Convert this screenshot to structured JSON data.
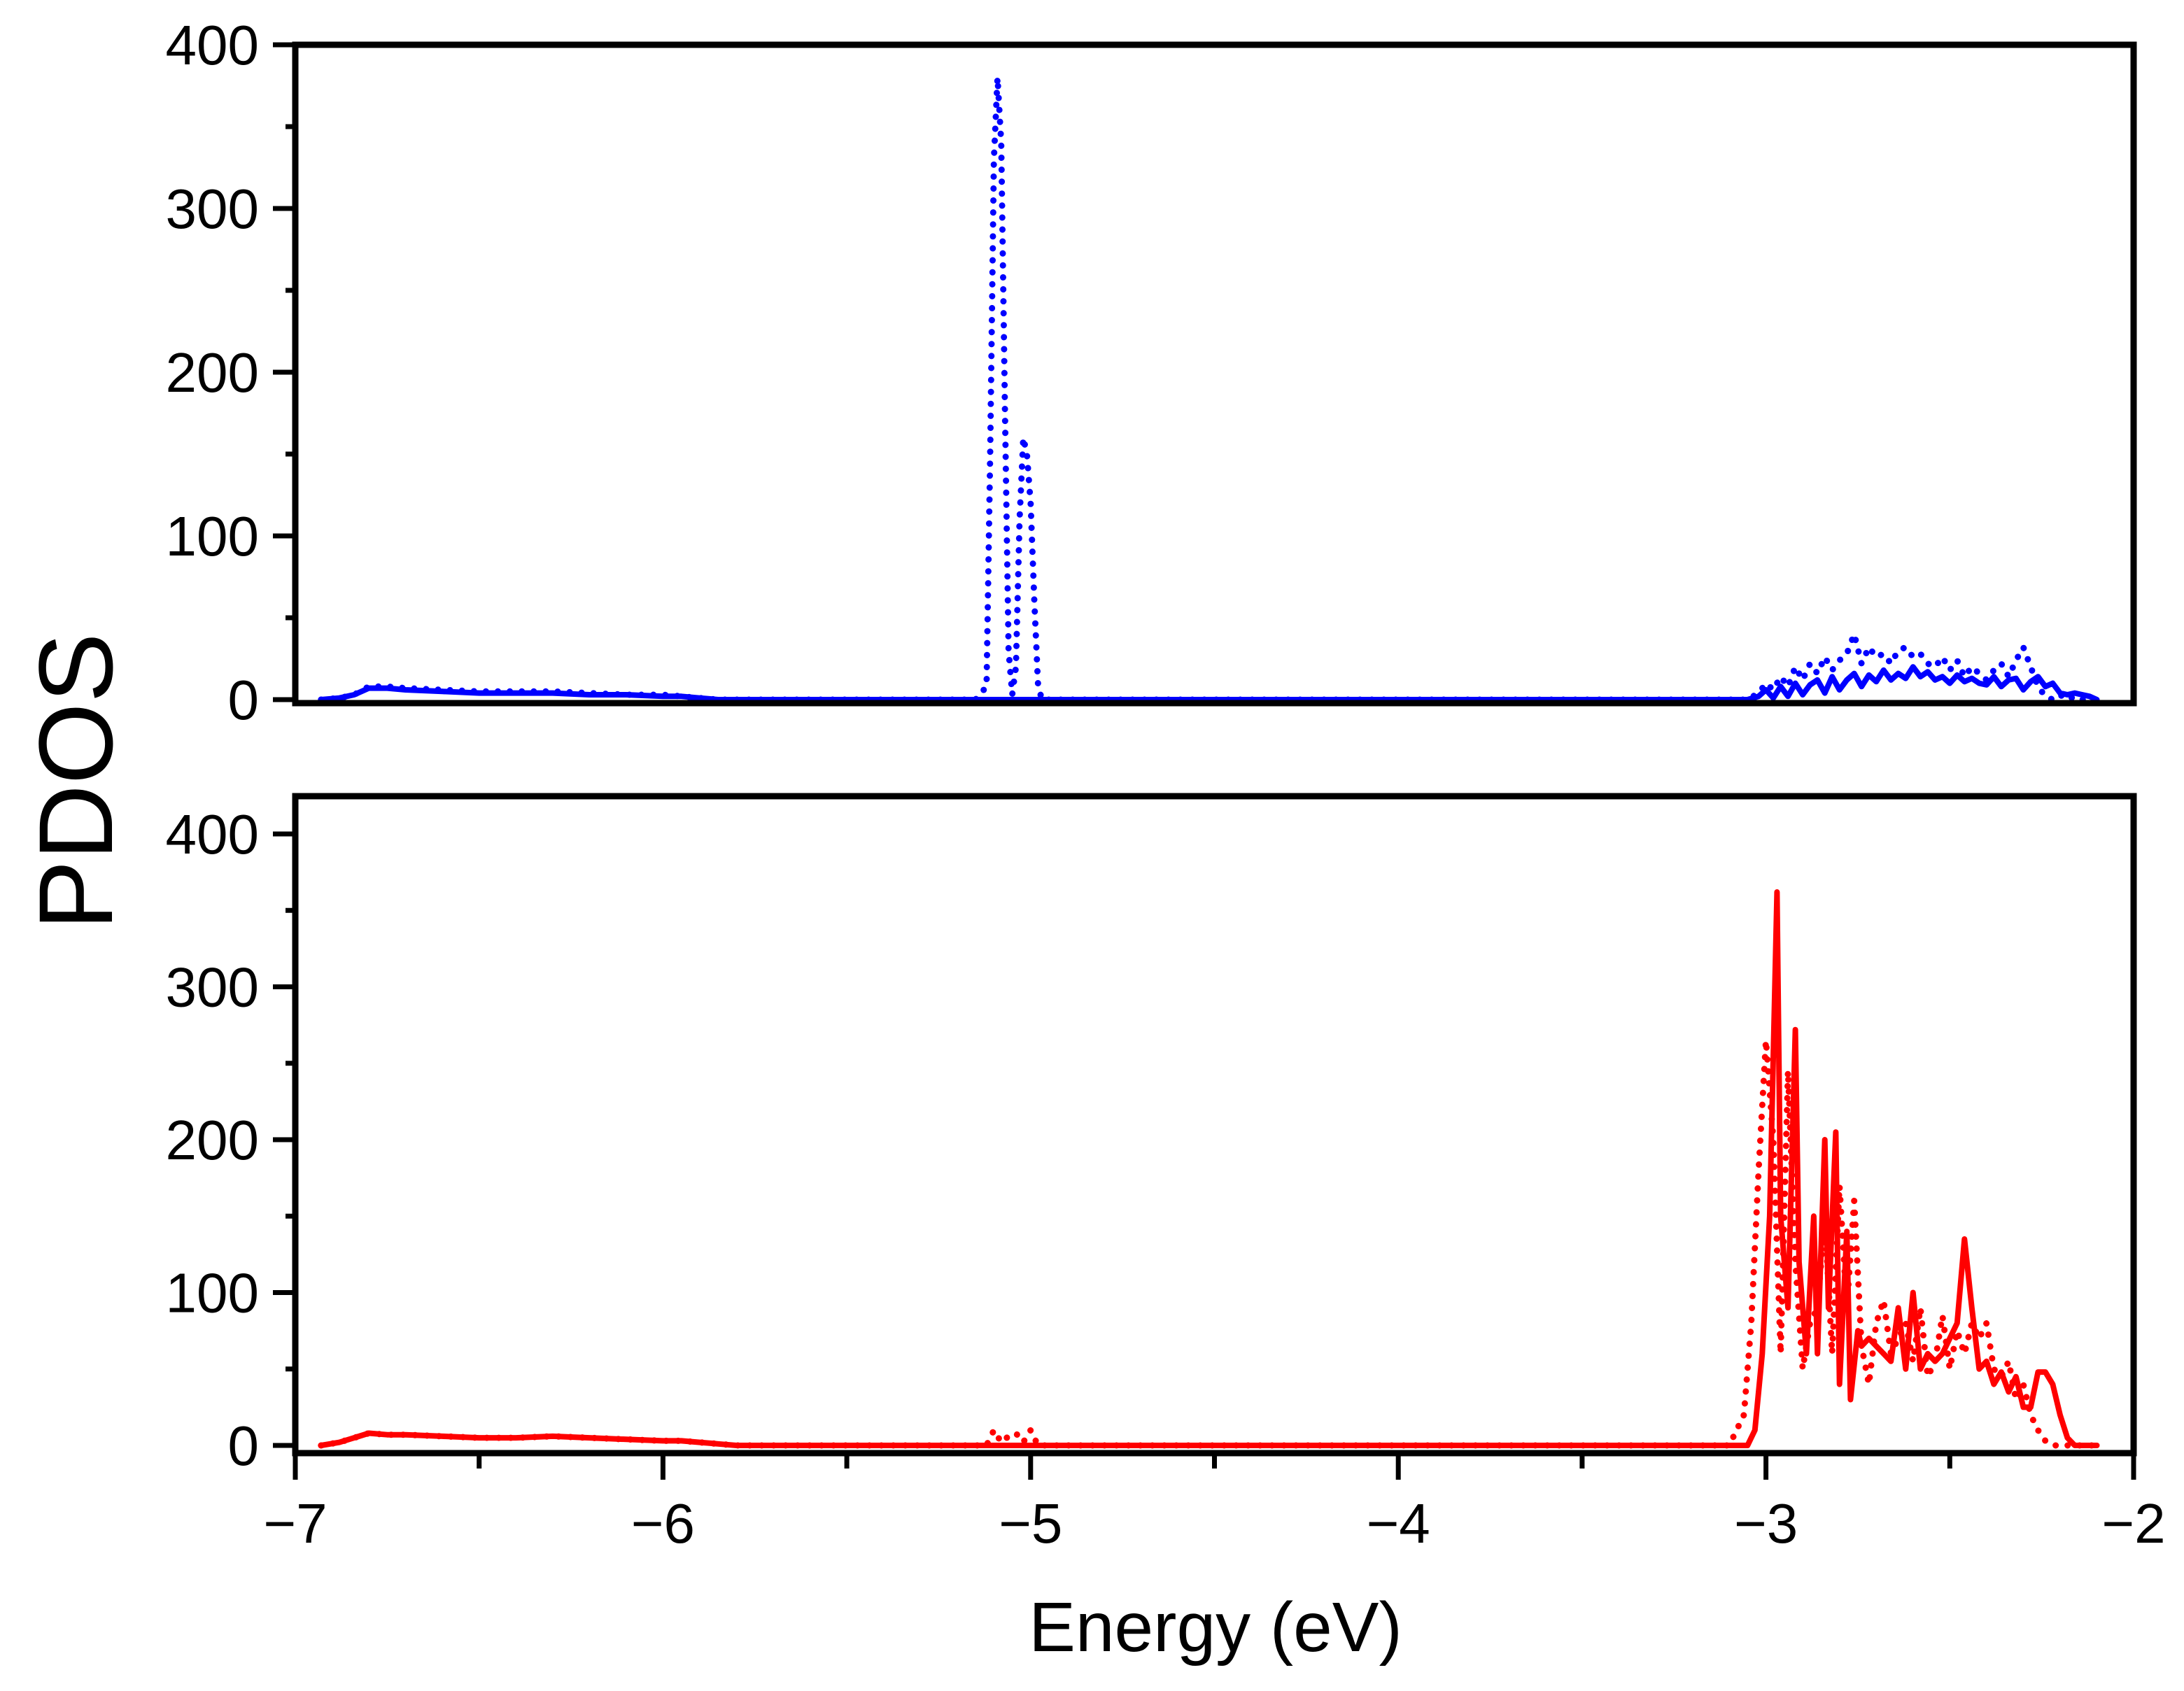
{
  "chart_data": {
    "type": "line",
    "layout": "two vertically stacked panels sharing x-axis",
    "xlabel": "Energy (eV)",
    "ylabel": "PDOS",
    "xlim": [
      -7,
      -2
    ],
    "x_ticks": [
      -7,
      -6,
      -5,
      -4,
      -3,
      -2
    ],
    "x_tick_labels": [
      "−7",
      "−6",
      "−5",
      "−4",
      "−3",
      "−2"
    ],
    "grid": false,
    "legend": null,
    "panels": [
      {
        "name": "top",
        "ylim": [
          0,
          400
        ],
        "y_ticks": [
          0,
          100,
          200,
          300,
          400
        ],
        "y_tick_labels": [
          "0",
          "100",
          "200",
          "300",
          "400"
        ],
        "series": [
          {
            "name": "blue-solid",
            "color": "#0000ff",
            "style": "solid",
            "x": [
              -6.93,
              -6.88,
              -6.84,
              -6.8,
              -6.75,
              -6.7,
              -6.6,
              -6.5,
              -6.4,
              -6.3,
              -6.2,
              -6.1,
              -6.0,
              -5.95,
              -5.9,
              -5.85,
              -5.8,
              -5.1,
              -5.0,
              -4.0,
              -3.05,
              -3.02,
              -3.0,
              -2.98,
              -2.96,
              -2.94,
              -2.92,
              -2.9,
              -2.88,
              -2.86,
              -2.84,
              -2.82,
              -2.8,
              -2.78,
              -2.76,
              -2.74,
              -2.72,
              -2.7,
              -2.68,
              -2.66,
              -2.64,
              -2.62,
              -2.6,
              -2.58,
              -2.56,
              -2.54,
              -2.52,
              -2.5,
              -2.48,
              -2.46,
              -2.44,
              -2.42,
              -2.4,
              -2.38,
              -2.36,
              -2.34,
              -2.32,
              -2.3,
              -2.28,
              -2.26,
              -2.24,
              -2.22,
              -2.2,
              -2.18,
              -2.16,
              -2.14,
              -2.12,
              -2.1
            ],
            "y": [
              0,
              1,
              3,
              7,
              7,
              6,
              5,
              4,
              4,
              4,
              3,
              3,
              2,
              2,
              1,
              0,
              0,
              0,
              0,
              0,
              0,
              2,
              6,
              1,
              8,
              2,
              10,
              3,
              9,
              12,
              4,
              14,
              6,
              12,
              16,
              8,
              15,
              11,
              18,
              12,
              16,
              13,
              20,
              14,
              17,
              12,
              14,
              10,
              15,
              11,
              13,
              10,
              9,
              14,
              8,
              12,
              13,
              6,
              11,
              14,
              8,
              10,
              4,
              3,
              4,
              3,
              2,
              0
            ]
          },
          {
            "name": "blue-dotted",
            "color": "#0000ff",
            "style": "dotted",
            "x": [
              -6.93,
              -6.88,
              -6.84,
              -6.8,
              -6.75,
              -6.7,
              -6.6,
              -6.5,
              -6.4,
              -6.3,
              -6.2,
              -6.1,
              -6.0,
              -5.95,
              -5.9,
              -5.85,
              -5.8,
              -5.15,
              -5.12,
              -5.11,
              -5.1,
              -5.09,
              -5.08,
              -5.07,
              -5.06,
              -5.05,
              -5.04,
              -5.03,
              -5.02,
              -5.01,
              -5.0,
              -4.99,
              -4.98,
              -4.97,
              -4.96,
              -4.95,
              -4.9,
              -4.0,
              -3.05,
              -3.02,
              -3.0,
              -2.98,
              -2.96,
              -2.94,
              -2.92,
              -2.9,
              -2.88,
              -2.86,
              -2.84,
              -2.82,
              -2.8,
              -2.78,
              -2.76,
              -2.74,
              -2.72,
              -2.7,
              -2.68,
              -2.66,
              -2.64,
              -2.62,
              -2.6,
              -2.58,
              -2.56,
              -2.54,
              -2.52,
              -2.5,
              -2.48,
              -2.46,
              -2.44,
              -2.42,
              -2.4,
              -2.38,
              -2.36,
              -2.34,
              -2.32,
              -2.3,
              -2.28,
              -2.26,
              -2.24,
              -2.22,
              -2.2,
              -2.18,
              -2.16,
              -2.14,
              -2.12,
              -2.1
            ],
            "y": [
              0,
              1,
              3,
              8,
              8,
              7,
              6,
              5,
              5,
              5,
              4,
              3,
              3,
              2,
              1,
              0,
              0,
              0,
              8,
              150,
              330,
              380,
              340,
              180,
              30,
              3,
              20,
              110,
              160,
              150,
              120,
              60,
              10,
              0,
              0,
              0,
              0,
              0,
              0,
              4,
              10,
              6,
              14,
              8,
              20,
              12,
              22,
              16,
              26,
              18,
              24,
              28,
              40,
              22,
              32,
              26,
              28,
              22,
              30,
              32,
              26,
              28,
              22,
              20,
              26,
              18,
              24,
              14,
              20,
              16,
              12,
              18,
              22,
              14,
              24,
              32,
              20,
              8,
              2,
              0,
              3,
              0,
              2,
              0,
              0,
              0
            ]
          }
        ]
      },
      {
        "name": "bottom",
        "ylim": [
          0,
          400
        ],
        "y_ticks": [
          0,
          100,
          200,
          300,
          400
        ],
        "y_tick_labels": [
          "0",
          "100",
          "200",
          "300",
          "400"
        ],
        "series": [
          {
            "name": "red-solid",
            "color": "#ff0000",
            "style": "solid",
            "x": [
              -6.93,
              -6.88,
              -6.84,
              -6.8,
              -6.75,
              -6.7,
              -6.6,
              -6.5,
              -6.4,
              -6.3,
              -6.2,
              -6.1,
              -6.0,
              -5.95,
              -5.9,
              -5.85,
              -5.8,
              -5.0,
              -4.0,
              -3.1,
              -3.05,
              -3.03,
              -3.01,
              -2.99,
              -2.97,
              -2.96,
              -2.94,
              -2.92,
              -2.91,
              -2.89,
              -2.87,
              -2.86,
              -2.84,
              -2.83,
              -2.81,
              -2.8,
              -2.78,
              -2.77,
              -2.75,
              -2.74,
              -2.72,
              -2.7,
              -2.68,
              -2.66,
              -2.64,
              -2.62,
              -2.6,
              -2.58,
              -2.56,
              -2.54,
              -2.52,
              -2.5,
              -2.48,
              -2.46,
              -2.44,
              -2.42,
              -2.4,
              -2.38,
              -2.36,
              -2.34,
              -2.32,
              -2.3,
              -2.28,
              -2.26,
              -2.24,
              -2.22,
              -2.2,
              -2.18,
              -2.16,
              -2.14,
              -2.12,
              -2.1
            ],
            "y": [
              0,
              2,
              5,
              8,
              7,
              7,
              6,
              5,
              5,
              6,
              5,
              4,
              3,
              3,
              2,
              1,
              0,
              0,
              0,
              0,
              0,
              10,
              60,
              150,
              362,
              150,
              90,
              272,
              120,
              60,
              150,
              60,
              200,
              90,
              205,
              40,
              140,
              30,
              75,
              65,
              70,
              65,
              60,
              55,
              90,
              50,
              100,
              50,
              60,
              55,
              60,
              70,
              80,
              135,
              90,
              50,
              55,
              40,
              48,
              35,
              45,
              25,
              25,
              48,
              48,
              40,
              20,
              5,
              0,
              0,
              0,
              0
            ]
          },
          {
            "name": "red-dotted",
            "color": "#ff0000",
            "style": "dotted",
            "x": [
              -6.93,
              -6.88,
              -6.84,
              -6.8,
              -6.75,
              -6.7,
              -6.6,
              -6.5,
              -6.4,
              -6.3,
              -6.2,
              -6.1,
              -6.0,
              -5.95,
              -5.9,
              -5.85,
              -5.8,
              -5.12,
              -5.1,
              -5.08,
              -5.06,
              -5.04,
              -5.02,
              -5.0,
              -4.98,
              -4.0,
              -3.1,
              -3.06,
              -3.04,
              -3.02,
              -3.0,
              -2.98,
              -2.96,
              -2.94,
              -2.92,
              -2.9,
              -2.88,
              -2.86,
              -2.84,
              -2.82,
              -2.8,
              -2.78,
              -2.76,
              -2.74,
              -2.72,
              -2.7,
              -2.68,
              -2.66,
              -2.64,
              -2.62,
              -2.6,
              -2.58,
              -2.56,
              -2.54,
              -2.52,
              -2.5,
              -2.48,
              -2.46,
              -2.44,
              -2.42,
              -2.4,
              -2.38,
              -2.36,
              -2.34,
              -2.32,
              -2.3,
              -2.28,
              -2.26,
              -2.24,
              -2.22,
              -2.2,
              -2.18,
              -2.16,
              -2.14,
              -2.12,
              -2.1
            ],
            "y": [
              0,
              2,
              5,
              8,
              7,
              7,
              6,
              5,
              5,
              6,
              5,
              4,
              3,
              3,
              2,
              1,
              0,
              0,
              10,
              2,
              6,
              8,
              2,
              10,
              0,
              0,
              0,
              20,
              80,
              180,
              265,
              200,
              60,
              245,
              120,
              50,
              80,
              90,
              150,
              60,
              170,
              90,
              160,
              65,
              40,
              80,
              95,
              60,
              70,
              80,
              55,
              90,
              45,
              55,
              85,
              50,
              75,
              60,
              80,
              70,
              80,
              50,
              45,
              55,
              30,
              40,
              20,
              10,
              3,
              0,
              0,
              0,
              0,
              0,
              0,
              0
            ]
          }
        ]
      }
    ]
  }
}
